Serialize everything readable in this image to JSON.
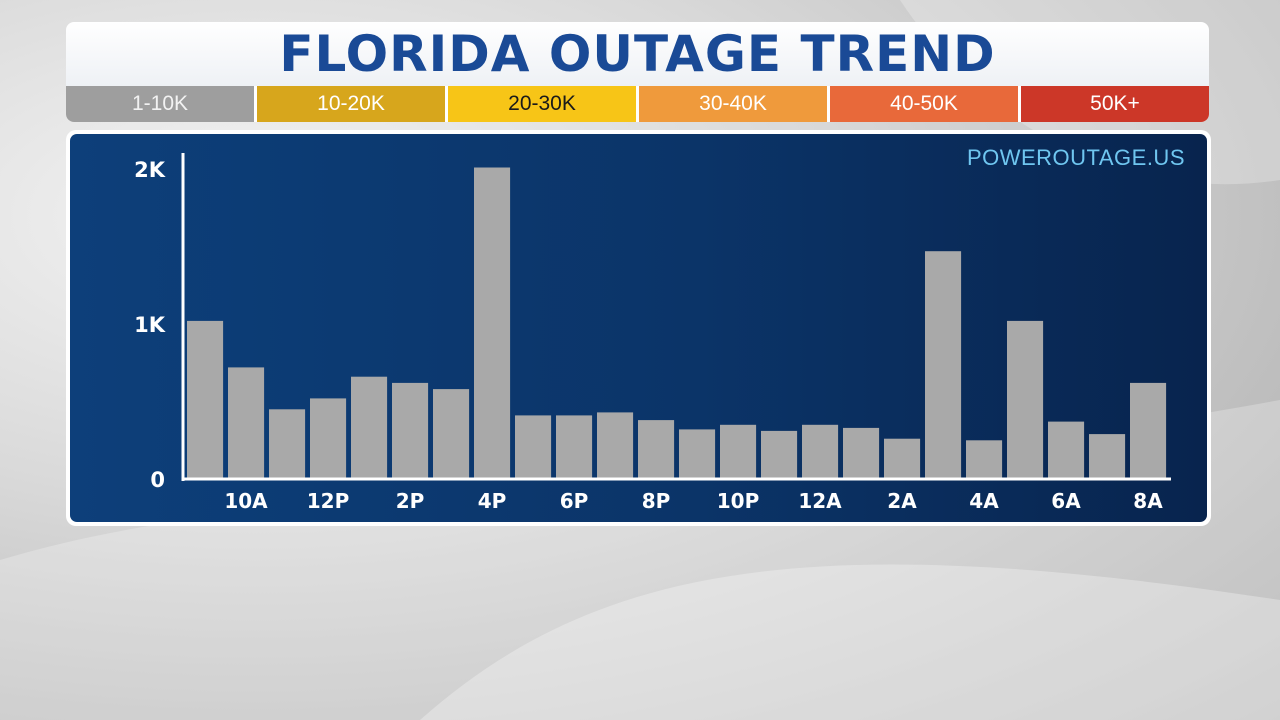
{
  "title": "FLORIDA OUTAGE TREND",
  "legend": [
    {
      "label": "1-10K",
      "color": "#9e9e9e",
      "text_color": "#f2f2f2"
    },
    {
      "label": "10-20K",
      "color": "#d7a61c",
      "text_color": "#ffffff"
    },
    {
      "label": "20-30K",
      "color": "#f7c517",
      "text_color": "#1a1a1a"
    },
    {
      "label": "30-40K",
      "color": "#ef9a3c",
      "text_color": "#ffffff"
    },
    {
      "label": "40-50K",
      "color": "#e8693a",
      "text_color": "#ffffff"
    },
    {
      "label": "50K+",
      "color": "#cc3728",
      "text_color": "#ffffff"
    }
  ],
  "source": "POWEROUTAGE.US",
  "colors": {
    "bar": "#a9a9a9",
    "axis": "#ffffff",
    "tick_text": "#ffffff"
  },
  "chart_data": {
    "type": "bar",
    "x_tick_labels": [
      "10A",
      "12P",
      "2P",
      "4P",
      "6P",
      "8P",
      "10P",
      "12A",
      "2A",
      "4A",
      "6A",
      "8A"
    ],
    "y_tick_labels": [
      "0",
      "1K",
      "2K"
    ],
    "y_ticks": [
      0,
      1000,
      2000
    ],
    "ylim": [
      0,
      2000
    ],
    "values": [
      1020,
      720,
      450,
      520,
      660,
      620,
      580,
      2010,
      410,
      410,
      430,
      380,
      320,
      350,
      310,
      350,
      330,
      260,
      1470,
      250,
      1020,
      370,
      290,
      620
    ],
    "grid": false,
    "legend": "top"
  }
}
